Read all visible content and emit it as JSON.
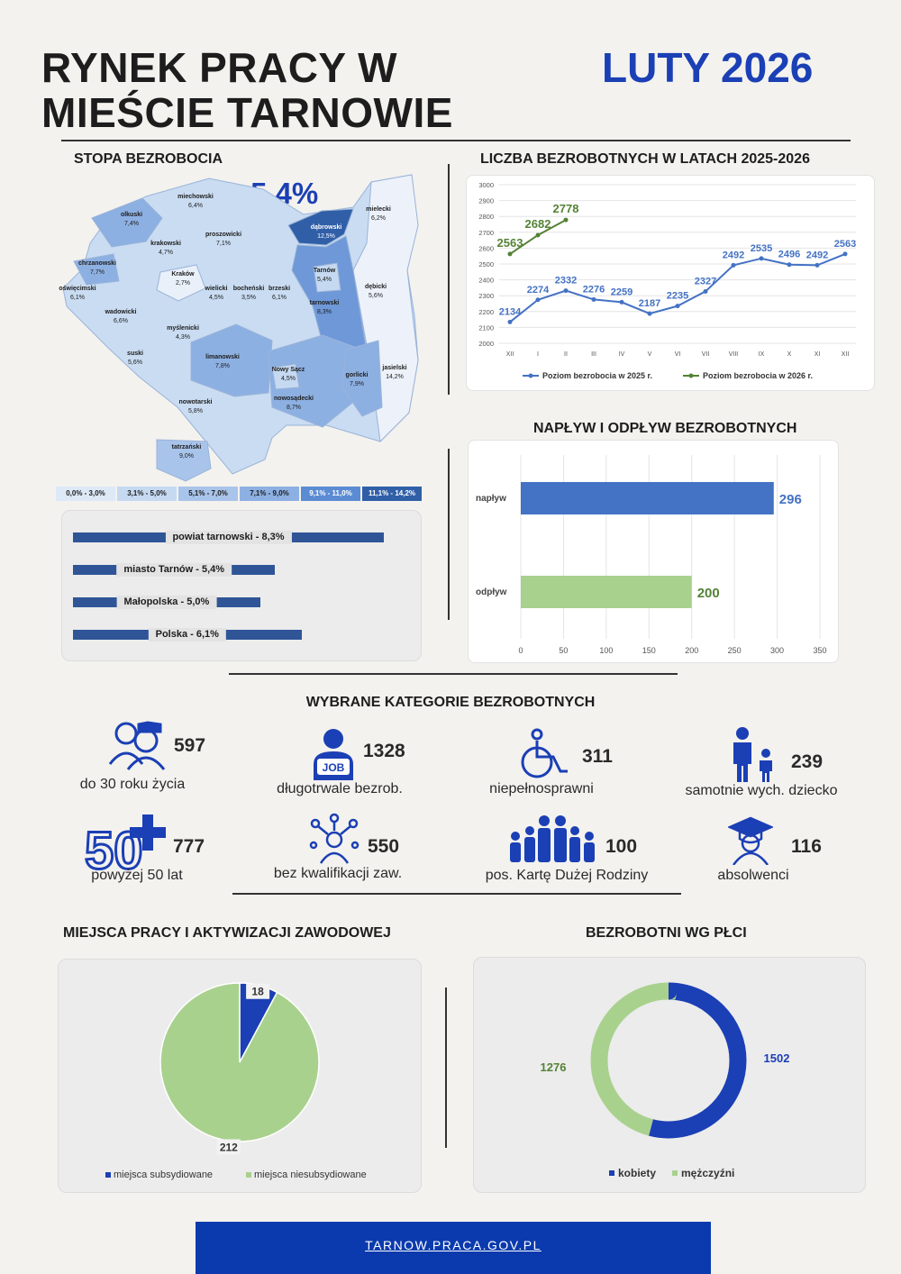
{
  "header": {
    "title_line1": "RYNEK PRACY W",
    "title_line2": "MIEŚCIE TARNOWIE",
    "date": "LUTY 2026"
  },
  "colors": {
    "accent": "#1b3fb5",
    "series_2025": "#4472c4",
    "series_2026": "#548235",
    "green": "#a9d18e",
    "dark_bar": "#2f5597"
  },
  "unemployment_rate": {
    "title": "STOPA BEZROBOCIA",
    "headline": "5,4%",
    "map_labels": [
      {
        "name": "miechowski",
        "value": "6,4%"
      },
      {
        "name": "olkuski",
        "value": "7,4%"
      },
      {
        "name": "proszowicki",
        "value": "7,1%"
      },
      {
        "name": "dąbrowski",
        "value": "12,5%"
      },
      {
        "name": "mielecki",
        "value": "6,2%"
      },
      {
        "name": "krakowski",
        "value": "4,7%"
      },
      {
        "name": "chrzanowski",
        "value": "7,7%"
      },
      {
        "name": "Kraków",
        "value": "2,7%"
      },
      {
        "name": "wielicki",
        "value": "4,5%"
      },
      {
        "name": "bocheński",
        "value": "3,5%"
      },
      {
        "name": "brzeski",
        "value": "6,1%"
      },
      {
        "name": "Tarnów",
        "value": "5,4%"
      },
      {
        "name": "dębicki",
        "value": "5,6%"
      },
      {
        "name": "oświęcimski",
        "value": "6,1%"
      },
      {
        "name": "wadowicki",
        "value": "6,6%"
      },
      {
        "name": "tarnowski",
        "value": "8,3%"
      },
      {
        "name": "myślenicki",
        "value": "4,3%"
      },
      {
        "name": "suski",
        "value": "5,6%"
      },
      {
        "name": "limanowski",
        "value": "7,8%"
      },
      {
        "name": "jasielski",
        "value": "14,2%"
      },
      {
        "name": "Nowy Sącz",
        "value": "4,5%"
      },
      {
        "name": "gorlicki",
        "value": "7,9%"
      },
      {
        "name": "nowosądecki",
        "value": "8,7%"
      },
      {
        "name": "nowotarski",
        "value": "5,8%"
      },
      {
        "name": "tatrzański",
        "value": "9,0%"
      }
    ],
    "legend": [
      "0,0% - 3,0%",
      "3,1% - 5,0%",
      "5,1% - 7,0%",
      "7,1% - 9,0%",
      "9,1% - 11,0%",
      "11,1% - 14,2%"
    ],
    "legend_colors": [
      "#dde9f7",
      "#c5d9f1",
      "#a9c4ea",
      "#8db0e2",
      "#5b8bd3",
      "#305fa8"
    ],
    "comparison": [
      {
        "label": "powiat tarnowski - 8,3%",
        "value": 8.3
      },
      {
        "label": "miasto Tarnów - 5,4%",
        "value": 5.4
      },
      {
        "label": "Małopolska - 5,0%",
        "value": 5.0
      },
      {
        "label": "Polska - 6,1%",
        "value": 6.1
      }
    ]
  },
  "chart_data": [
    {
      "type": "line",
      "title": "LICZBA BEZROBOTNYCH W LATACH 2025-2026",
      "categories": [
        "XII",
        "I",
        "II",
        "III",
        "IV",
        "V",
        "VI",
        "VII",
        "VIII",
        "IX",
        "X",
        "XI",
        "XII"
      ],
      "ylim": [
        2000,
        3000
      ],
      "yticks": [
        "2000",
        "2100",
        "2200",
        "2300",
        "2400",
        "2500",
        "2600",
        "2700",
        "2800",
        "2900",
        "3000"
      ],
      "grid": true,
      "legend_position": "bottom",
      "series": [
        {
          "name": "Poziom bezrobocia w 2025 r.",
          "values": [
            2134,
            2274,
            2332,
            2276,
            2259,
            2187,
            2235,
            2327,
            2492,
            2535,
            2496,
            2492,
            2563
          ]
        },
        {
          "name": "Poziom bezrobocia w 2026 r.",
          "values": [
            2563,
            2682,
            2778,
            null,
            null,
            null,
            null,
            null,
            null,
            null,
            null,
            null,
            null
          ]
        }
      ]
    },
    {
      "type": "bar",
      "orientation": "horizontal",
      "title": "NAPŁYW I ODPŁYW BEZROBOTNYCH",
      "categories": [
        "napływ",
        "odpływ"
      ],
      "values": [
        296,
        200
      ],
      "xlim": [
        0,
        350
      ],
      "xticks": [
        "0",
        "50",
        "100",
        "150",
        "200",
        "250",
        "300",
        "350"
      ],
      "grid": true
    },
    {
      "type": "pie",
      "title": "MIEJSCA PRACY I AKTYWIZACJI ZAWODOWEJ",
      "categories": [
        "miejsca subsydiowane",
        "miejsca niesubsydiowane"
      ],
      "values": [
        18,
        212
      ],
      "legend_position": "bottom"
    },
    {
      "type": "pie",
      "variant": "donut",
      "title": "BEZROBOTNI WG PŁCI",
      "categories": [
        "kobiety",
        "mężczyźni"
      ],
      "values": [
        1502,
        1276
      ],
      "legend_position": "bottom"
    }
  ],
  "categories_section": {
    "title": "WYBRANE KATEGORIE BEZROBOTNYCH",
    "items": [
      {
        "value": "597",
        "label": "do 30 roku życia",
        "icon": "young-people-icon"
      },
      {
        "value": "1328",
        "label": "długotrwale bezrob.",
        "icon": "job-worker-icon"
      },
      {
        "value": "311",
        "label": "niepełnosprawni",
        "icon": "wheelchair-icon"
      },
      {
        "value": "239",
        "label": "samotnie wych. dziecko",
        "icon": "parent-child-icon"
      },
      {
        "value": "777",
        "label": "powyżej 50 lat",
        "icon": "fifty-plus-icon",
        "icon_text": "50"
      },
      {
        "value": "550",
        "label": "bez kwalifikacji zaw.",
        "icon": "skills-person-icon"
      },
      {
        "value": "100",
        "label": "pos. Kartę Dużej Rodziny",
        "icon": "big-family-icon"
      },
      {
        "value": "116",
        "label": "absolwenci",
        "icon": "graduate-icon"
      }
    ]
  },
  "footer": {
    "url": "TARNOW.PRACA.GOV.PL"
  }
}
